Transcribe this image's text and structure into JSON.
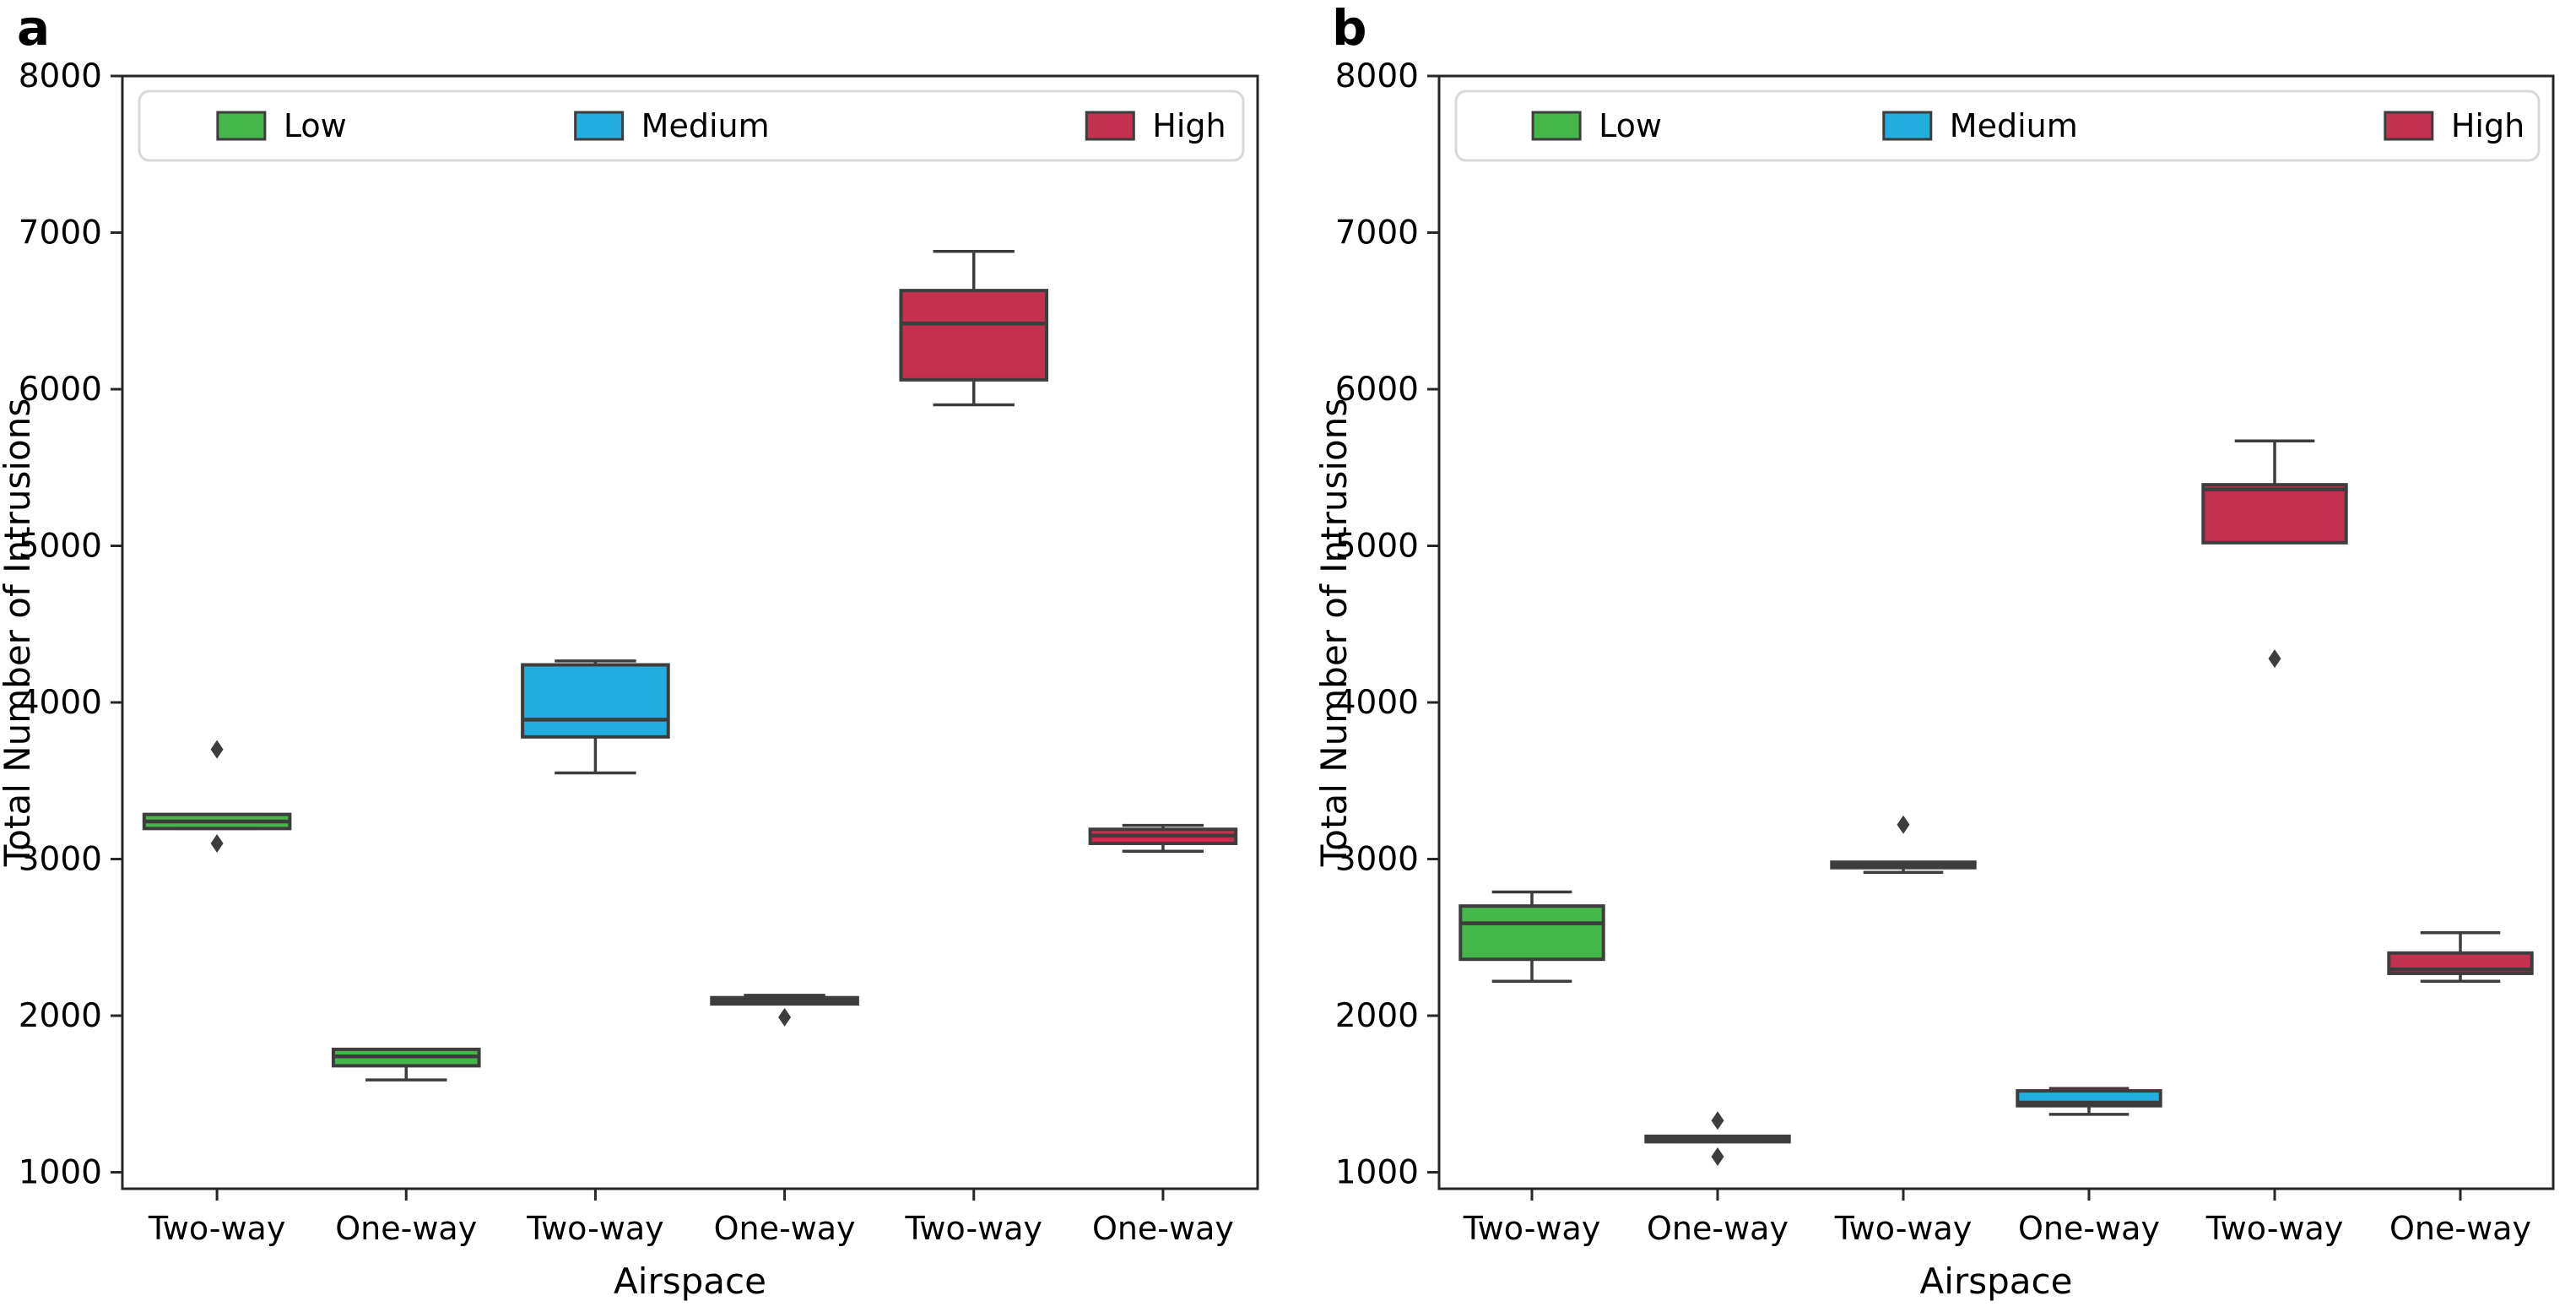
{
  "colors": {
    "low": "#45b649",
    "medium": "#22addf",
    "high": "#c4304f",
    "box_edge": "#3d3d3d",
    "whisker": "#3d3d3d",
    "flier": "#3d3d3d",
    "spine": "#262626",
    "legend_border": "#d9d9d9",
    "legend_bg": "#ffffff",
    "text": "#000000"
  },
  "chart_data": [
    {
      "type": "box",
      "panel_label": "a",
      "xlabel": "Airspace",
      "ylabel": "Total Number of Intrusions",
      "ylim": [
        895,
        8000
      ],
      "yticks": [
        1000,
        2000,
        3000,
        4000,
        5000,
        6000,
        7000,
        8000
      ],
      "grid": false,
      "legend_position": "top-inside-horizontal",
      "legend": [
        {
          "label": "Low",
          "color_key": "low"
        },
        {
          "label": "Medium",
          "color_key": "medium"
        },
        {
          "label": "High",
          "color_key": "high"
        }
      ],
      "series": [
        {
          "category": "Two-way",
          "level": "Low",
          "whislo": 3195,
          "q1": 3195,
          "med": 3240,
          "q3": 3285,
          "whishi": 3285,
          "fliers": [
            3700,
            3100
          ]
        },
        {
          "category": "One-way",
          "level": "Low",
          "whislo": 1590,
          "q1": 1680,
          "med": 1740,
          "q3": 1785,
          "whishi": 1785,
          "fliers": []
        },
        {
          "category": "Two-way",
          "level": "Medium",
          "whislo": 3550,
          "q1": 3780,
          "med": 3890,
          "q3": 4240,
          "whishi": 4265,
          "fliers": []
        },
        {
          "category": "One-way",
          "level": "Medium",
          "whislo": 2075,
          "q1": 2075,
          "med": 2095,
          "q3": 2115,
          "whishi": 2130,
          "fliers": [
            1990
          ]
        },
        {
          "category": "Two-way",
          "level": "High",
          "whislo": 5900,
          "q1": 6060,
          "med": 6420,
          "q3": 6630,
          "whishi": 6880,
          "fliers": []
        },
        {
          "category": "One-way",
          "level": "High",
          "whislo": 3050,
          "q1": 3100,
          "med": 3150,
          "q3": 3190,
          "whishi": 3215,
          "fliers": []
        }
      ]
    },
    {
      "type": "box",
      "panel_label": "b",
      "xlabel": "Airspace",
      "ylabel": "Total Number of Intrusions",
      "ylim": [
        895,
        8000
      ],
      "yticks": [
        1000,
        2000,
        3000,
        4000,
        5000,
        6000,
        7000,
        8000
      ],
      "grid": false,
      "legend_position": "top-inside-horizontal",
      "legend": [
        {
          "label": "Low",
          "color_key": "low"
        },
        {
          "label": "Medium",
          "color_key": "medium"
        },
        {
          "label": "High",
          "color_key": "high"
        }
      ],
      "series": [
        {
          "category": "Two-way",
          "level": "Low",
          "whislo": 2220,
          "q1": 2360,
          "med": 2590,
          "q3": 2700,
          "whishi": 2790,
          "fliers": []
        },
        {
          "category": "One-way",
          "level": "Low",
          "whislo": 1195,
          "q1": 1195,
          "med": 1210,
          "q3": 1230,
          "whishi": 1230,
          "fliers": [
            1330,
            1100
          ]
        },
        {
          "category": "Two-way",
          "level": "Medium",
          "whislo": 2915,
          "q1": 2945,
          "med": 2960,
          "q3": 2980,
          "whishi": 2980,
          "fliers": [
            3220
          ]
        },
        {
          "category": "One-way",
          "level": "Medium",
          "whislo": 1370,
          "q1": 1425,
          "med": 1445,
          "q3": 1520,
          "whishi": 1535,
          "fliers": []
        },
        {
          "category": "Two-way",
          "level": "High",
          "whislo": 5020,
          "q1": 5020,
          "med": 5360,
          "q3": 5390,
          "whishi": 5670,
          "fliers": [
            4280
          ]
        },
        {
          "category": "One-way",
          "level": "High",
          "whislo": 2220,
          "q1": 2270,
          "med": 2295,
          "q3": 2400,
          "whishi": 2530,
          "fliers": []
        }
      ]
    }
  ]
}
